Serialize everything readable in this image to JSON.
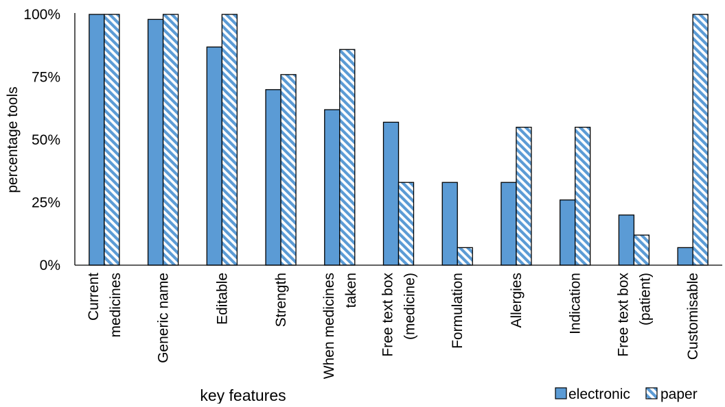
{
  "chart_data": {
    "type": "bar",
    "title": "",
    "xlabel": "key features",
    "ylabel": "percentage tools",
    "ylim": [
      0,
      100
    ],
    "yticks": [
      "0%",
      "25%",
      "50%",
      "75%",
      "100%"
    ],
    "ytick_values": [
      0,
      25,
      50,
      75,
      100
    ],
    "grid": false,
    "legend_position": "bottom-right",
    "categories": [
      [
        "Current",
        "medicines"
      ],
      [
        "Generic name"
      ],
      [
        "Editable"
      ],
      [
        "Strength"
      ],
      [
        "When medicines",
        "taken"
      ],
      [
        "Free text box",
        "(medicine)"
      ],
      [
        "Formulation"
      ],
      [
        "Allergies"
      ],
      [
        "Indication"
      ],
      [
        "Free text box",
        "(patient)"
      ],
      [
        "Customisable"
      ]
    ],
    "series": [
      {
        "name": "electronic",
        "color": "#5B9BD5",
        "pattern": "solid",
        "values": [
          100,
          98,
          87,
          70,
          62,
          57,
          33,
          33,
          26,
          20,
          7
        ]
      },
      {
        "name": "paper",
        "color": "#5B9BD5",
        "pattern": "hatched",
        "values": [
          100,
          100,
          100,
          76,
          86,
          33,
          7,
          55,
          55,
          12,
          100
        ]
      }
    ]
  }
}
